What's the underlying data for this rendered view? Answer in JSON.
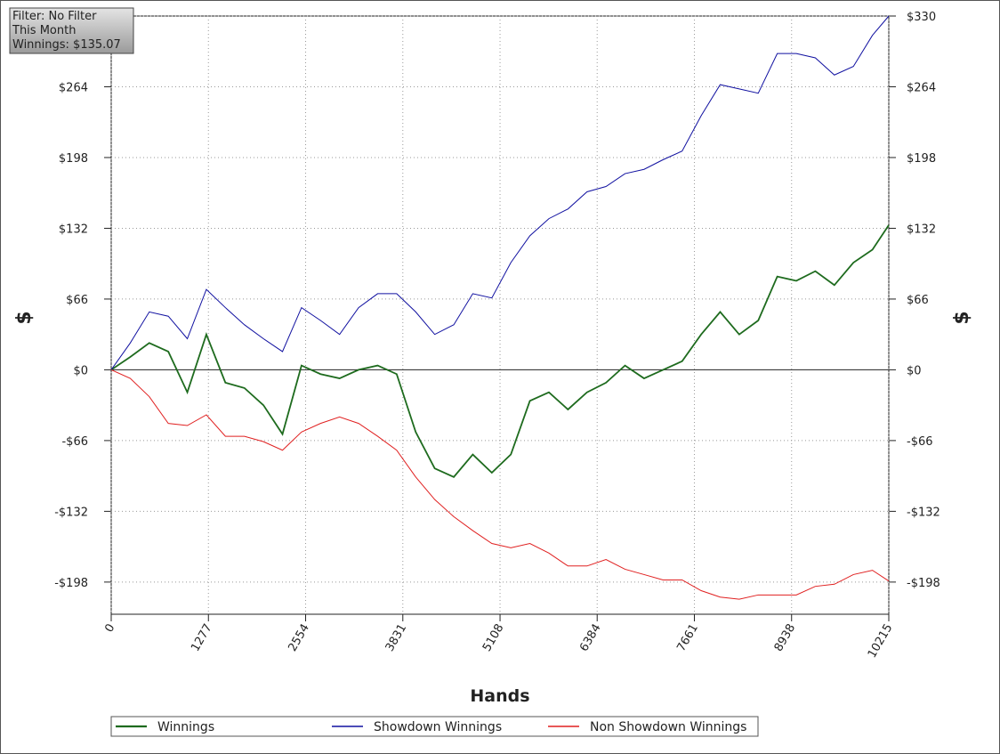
{
  "chart_data": {
    "type": "line",
    "info": [
      "Filter: No Filter",
      "This Month",
      "Winnings: $135.07"
    ],
    "x_label": "Hands",
    "y_label": "$",
    "x": [
      0,
      250,
      500,
      750,
      1000,
      1250,
      1500,
      1750,
      2000,
      2250,
      2500,
      2750,
      3000,
      3250,
      3500,
      3750,
      4000,
      4250,
      4500,
      4750,
      5000,
      5250,
      5500,
      5750,
      6000,
      6250,
      6500,
      6750,
      7000,
      7250,
      7500,
      7750,
      8000,
      8250,
      8500,
      8750,
      9000,
      9250,
      9500,
      9750,
      10000,
      10215
    ],
    "series": [
      {
        "name": "Winnings",
        "color": "#1e6b1e",
        "width": 1.8,
        "values": [
          0,
          12,
          25,
          17,
          -21,
          33,
          -12,
          -17,
          -33,
          -60,
          4,
          -4,
          -8,
          0,
          4,
          -4,
          -58,
          -92,
          -100,
          -79,
          -96,
          -79,
          -29,
          -21,
          -37,
          -21,
          -12,
          4,
          -8,
          0,
          8,
          33,
          54,
          33,
          46,
          87,
          83,
          92,
          79,
          100,
          112,
          135
        ]
      },
      {
        "name": "Showdown Winnings",
        "color": "#1010a0",
        "width": 1,
        "values": [
          0,
          25,
          54,
          50,
          29,
          75,
          58,
          42,
          29,
          17,
          58,
          46,
          33,
          58,
          71,
          71,
          54,
          33,
          42,
          71,
          67,
          100,
          125,
          141,
          150,
          166,
          171,
          183,
          187,
          196,
          204,
          237,
          266,
          262,
          258,
          295,
          295,
          291,
          275,
          283,
          312,
          330
        ]
      },
      {
        "name": "Non Showdown Winnings",
        "color": "#e02020",
        "width": 1,
        "values": [
          0,
          -8,
          -25,
          -50,
          -52,
          -42,
          -62,
          -62,
          -67,
          -75,
          -58,
          -50,
          -44,
          -50,
          -62,
          -75,
          -100,
          -121,
          -137,
          -150,
          -162,
          -166,
          -162,
          -171,
          -183,
          -183,
          -177,
          -186,
          -191,
          -196,
          -196,
          -206,
          -212,
          -214,
          -210,
          -210,
          -210,
          -202,
          -200,
          -191,
          -187,
          -197
        ]
      }
    ],
    "xlim": [
      0,
      10215
    ],
    "xticks": [
      0,
      1277,
      2554,
      3831,
      5108,
      6384,
      7661,
      8938,
      10215
    ],
    "ylim": [
      -228,
      330
    ],
    "yticks": [
      {
        "value": -198,
        "label": "-$198"
      },
      {
        "value": -132,
        "label": "-$132"
      },
      {
        "value": -66,
        "label": "-$66"
      },
      {
        "value": 0,
        "label": "$0"
      },
      {
        "value": 66,
        "label": "$66"
      },
      {
        "value": 132,
        "label": "$132"
      },
      {
        "value": 198,
        "label": "$198"
      },
      {
        "value": 264,
        "label": "$264"
      },
      {
        "value": 330,
        "label": "$330"
      }
    ],
    "grid": true
  }
}
